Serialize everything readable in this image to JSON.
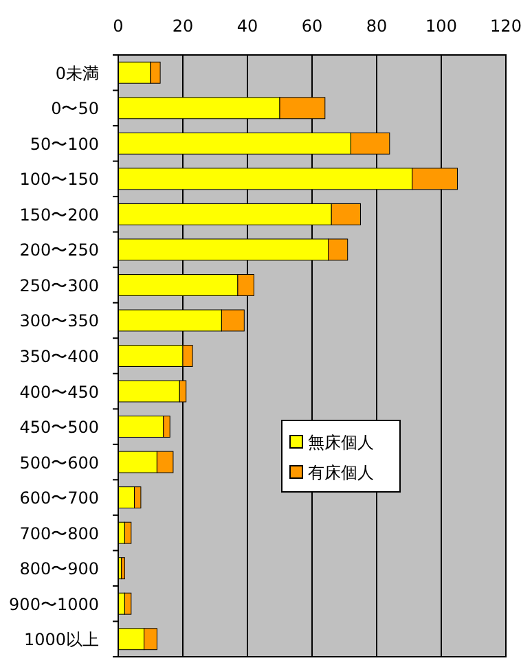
{
  "chart_data": {
    "type": "bar",
    "orientation": "horizontal",
    "stacked": true,
    "categories": [
      "0未満",
      "0〜50",
      "50〜100",
      "100〜150",
      "150〜200",
      "200〜250",
      "250〜300",
      "300〜350",
      "350〜400",
      "400〜450",
      "450〜500",
      "500〜600",
      "600〜700",
      "700〜800",
      "800〜900",
      "900〜1000",
      "1000以上"
    ],
    "series": [
      {
        "name": "無床個人",
        "color": "#ffff00",
        "values": [
          10,
          50,
          72,
          91,
          66,
          65,
          37,
          32,
          20,
          19,
          14,
          12,
          5,
          2,
          1,
          2,
          8
        ]
      },
      {
        "name": "有床個人",
        "color": "#ff9900",
        "values": [
          3,
          14,
          12,
          14,
          9,
          6,
          5,
          7,
          3,
          2,
          2,
          5,
          2,
          2,
          1,
          2,
          4
        ]
      }
    ],
    "xlim": [
      0,
      120
    ],
    "xticks": [
      0,
      20,
      40,
      60,
      80,
      100,
      120
    ],
    "grid": "x",
    "legend": "center"
  }
}
